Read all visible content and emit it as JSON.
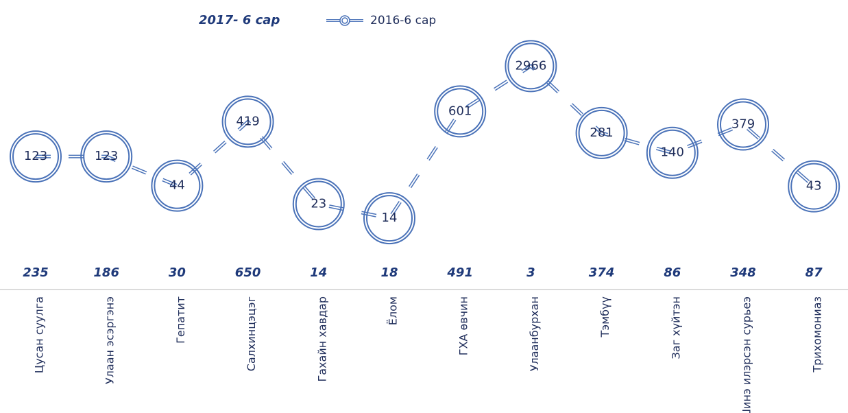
{
  "chart_data": {
    "type": "line",
    "categories": [
      "Цусан суулга",
      "Улаан эсэргэнэ",
      "Гепатит",
      "Салхинцэцэг",
      "Гахайн хавдар",
      "Ёлом",
      "ГХА өвчин",
      "Улаанбурхан",
      "Тэмбүү",
      "Заг хүйтэн",
      "Шинэ илэрсэн сурьеэ",
      "Трихомониаз"
    ],
    "series": [
      {
        "name": "2017- 6 сар",
        "color": "#1f3a7a",
        "values": [
          235,
          186,
          30,
          650,
          14,
          18,
          491,
          3,
          374,
          86,
          348,
          87
        ]
      },
      {
        "name": "2016-6 сар",
        "color": "#4a72b8",
        "values": [
          123,
          123,
          44,
          419,
          23,
          14,
          601,
          2966,
          281,
          140,
          379,
          43
        ]
      }
    ],
    "ylim": [
      10,
      10000
    ],
    "log_scale": true
  }
}
